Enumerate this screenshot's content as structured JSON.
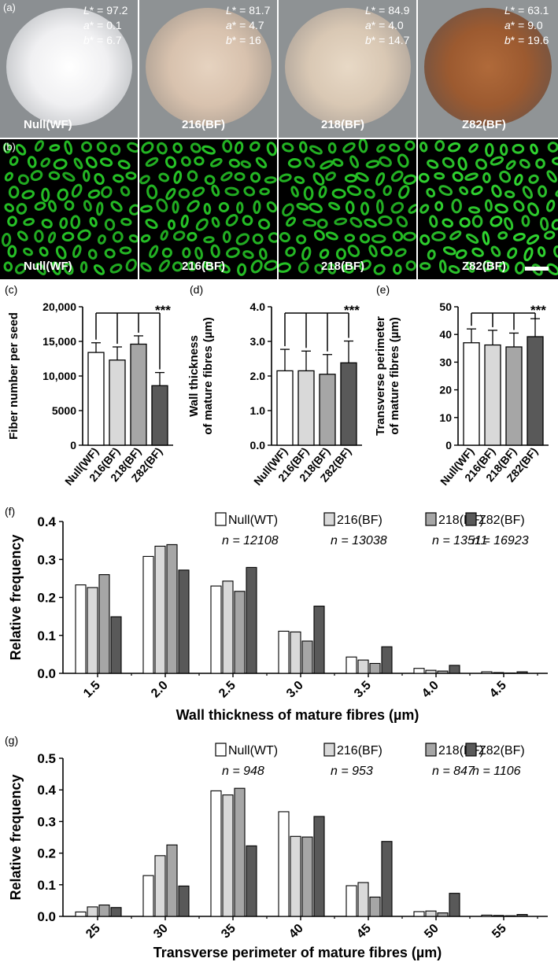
{
  "panel_a": {
    "label": "(a)",
    "samples": [
      {
        "name": "Null(WF)",
        "L": "97.2",
        "a": "0.1",
        "b": "6.7",
        "color": "#e8e8ea"
      },
      {
        "name": "216(BF)",
        "L": "81.7",
        "a": "4.7",
        "b": "16",
        "color": "#d8c2ae"
      },
      {
        "name": "218(BF)",
        "L": "84.9",
        "a": "4.0",
        "b": "14.7",
        "color": "#d9c8b4"
      },
      {
        "name": "Z82(BF)",
        "L": "63.1",
        "a": "9.0",
        "b": "19.6",
        "color": "#9c5a30"
      }
    ]
  },
  "panel_b": {
    "label": "(b)",
    "names": [
      "Null(WF)",
      "216(BF)",
      "218(BF)",
      "Z82(BF)"
    ]
  },
  "chart_data": [
    {
      "panel": "(c)",
      "type": "bar",
      "categories": [
        "Null(WF)",
        "216(BF)",
        "218(BF)",
        "Z82(BF)"
      ],
      "values": [
        13400,
        12300,
        14600,
        8600
      ],
      "errors": [
        1400,
        1900,
        1200,
        1900
      ],
      "ylabel": "Fiber number per seed",
      "ylim": [
        0,
        20000
      ],
      "yticks": [
        "0",
        "5000",
        "10,000",
        "15,000",
        "20,000"
      ],
      "significance": "***"
    },
    {
      "panel": "(d)",
      "type": "bar",
      "categories": [
        "Null(WF)",
        "216(BF)",
        "218(BF)",
        "Z82(BF)"
      ],
      "values": [
        2.15,
        2.15,
        2.05,
        2.38
      ],
      "errors": [
        0.62,
        0.57,
        0.57,
        0.63
      ],
      "ylabel": "Wall thickness of mature fibres (µm)",
      "ylabel_lines": [
        "Wall thickness",
        "of mature fibres (µm)"
      ],
      "ylim": [
        0,
        4
      ],
      "yticks": [
        "0.0",
        "1.0",
        "2.0",
        "3.0",
        "4.0"
      ],
      "significance": "***"
    },
    {
      "panel": "(e)",
      "type": "bar",
      "categories": [
        "Null(WF)",
        "216(BF)",
        "218(BF)",
        "Z82(BF)"
      ],
      "values": [
        37,
        36.2,
        35.5,
        39.2
      ],
      "errors": [
        5,
        5.3,
        5,
        6.5
      ],
      "ylabel": "Transverse perimeter of mature fibres (µm)",
      "ylabel_lines": [
        "Transverse perimeter",
        "of mature fibres (µm)"
      ],
      "ylim": [
        0,
        50
      ],
      "yticks": [
        "0",
        "10",
        "20",
        "30",
        "40",
        "50"
      ],
      "significance": "***"
    },
    {
      "panel": "(f)",
      "type": "bar",
      "categories": [
        "1.5",
        "2.0",
        "2.5",
        "3.0",
        "3.5",
        "4.0",
        "4.5"
      ],
      "series": [
        {
          "name": "Null(WT)",
          "n": "n = 12108",
          "values": [
            0.233,
            0.308,
            0.23,
            0.111,
            0.043,
            0.013,
            0.004
          ],
          "color": "#ffffff"
        },
        {
          "name": "216(BF)",
          "n": "n = 13038",
          "values": [
            0.226,
            0.335,
            0.243,
            0.109,
            0.035,
            0.008,
            0.002
          ],
          "color": "#d9d9d9"
        },
        {
          "name": "218(BF)",
          "n": "n = 13511",
          "values": [
            0.26,
            0.339,
            0.216,
            0.085,
            0.026,
            0.006,
            0.001
          ],
          "color": "#a6a6a6"
        },
        {
          "name": "Z82(BF)",
          "n": "n = 16923",
          "values": [
            0.149,
            0.272,
            0.279,
            0.177,
            0.07,
            0.021,
            0.004
          ],
          "color": "#595959"
        }
      ],
      "xlabel": "Wall thickness of mature fibres (µm)",
      "ylabel": "Relative frequency",
      "ylim": [
        0,
        0.4
      ],
      "yticks": [
        "0.0",
        "0.1",
        "0.2",
        "0.3",
        "0.4"
      ],
      "legend": "top-right"
    },
    {
      "panel": "(g)",
      "type": "bar",
      "categories": [
        "25",
        "30",
        "35",
        "40",
        "45",
        "50",
        "55"
      ],
      "series": [
        {
          "name": "Null(WT)",
          "n": "n = 948",
          "values": [
            0.014,
            0.129,
            0.397,
            0.331,
            0.097,
            0.015,
            0.004
          ],
          "color": "#ffffff"
        },
        {
          "name": "216(BF)",
          "n": "n = 953",
          "values": [
            0.03,
            0.192,
            0.384,
            0.253,
            0.107,
            0.017,
            0.003
          ],
          "color": "#d9d9d9"
        },
        {
          "name": "218(BF)",
          "n": "n = 847",
          "values": [
            0.036,
            0.226,
            0.405,
            0.251,
            0.061,
            0.011,
            0.002
          ],
          "color": "#a6a6a6"
        },
        {
          "name": "Z82(BF)",
          "n": "n = 1106",
          "values": [
            0.028,
            0.096,
            0.223,
            0.316,
            0.237,
            0.073,
            0.006
          ],
          "color": "#595959"
        }
      ],
      "xlabel": "Transverse perimeter of mature fibres (µm)",
      "ylabel": "Relative frequency",
      "ylim": [
        0,
        0.5
      ],
      "yticks": [
        "0.0",
        "0.1",
        "0.2",
        "0.3",
        "0.4",
        "0.5"
      ],
      "legend": "top-right"
    }
  ]
}
